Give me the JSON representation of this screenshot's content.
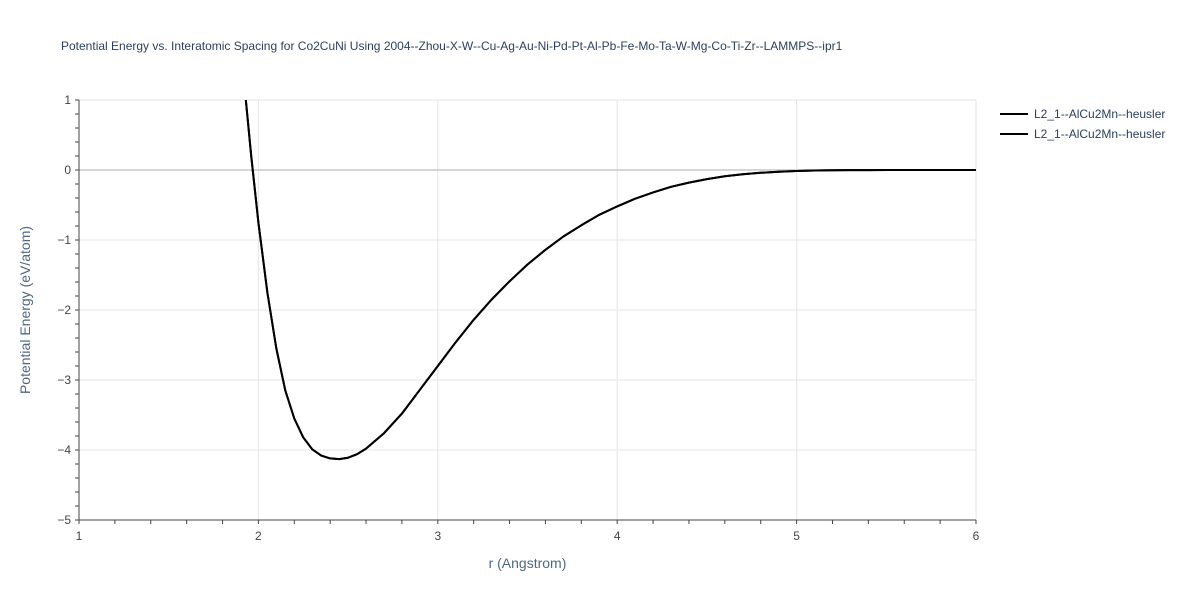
{
  "chart_data": {
    "type": "line",
    "title": "Potential Energy vs. Interatomic Spacing for Co2CuNi Using 2004--Zhou-X-W--Cu-Ag-Au-Ni-Pd-Pt-Al-Pb-Fe-Mo-Ta-W-Mg-Co-Ti-Zr--LAMMPS--ipr1",
    "xlabel": "r (Angstrom)",
    "ylabel": "Potential Energy (eV/atom)",
    "xlim": [
      1,
      6
    ],
    "ylim": [
      -5,
      1
    ],
    "xticks": [
      1,
      2,
      3,
      4,
      5,
      6
    ],
    "yticks": [
      1,
      0,
      -1,
      -2,
      -3,
      -4,
      -5
    ],
    "xtick_labels": [
      "1",
      "2",
      "3",
      "4",
      "5",
      "6"
    ],
    "ytick_labels": [
      "1",
      "0",
      "−1",
      "−2",
      "−3",
      "−4",
      "−5"
    ],
    "grid": true,
    "legend_position": "top-right",
    "colors": {
      "line": "#000000",
      "grid": "#e5e5e5",
      "zero_line": "#c8c8c8",
      "axis": "#444444"
    },
    "series": [
      {
        "name": "L2_1--AlCu2Mn--heusler",
        "x": [
          1.93,
          1.96,
          2.0,
          2.05,
          2.1,
          2.15,
          2.2,
          2.25,
          2.3,
          2.35,
          2.4,
          2.45,
          2.5,
          2.55,
          2.6,
          2.7,
          2.8,
          2.9,
          3.0,
          3.1,
          3.2,
          3.3,
          3.4,
          3.5,
          3.6,
          3.7,
          3.8,
          3.9,
          4.0,
          4.1,
          4.2,
          4.3,
          4.4,
          4.5,
          4.6,
          4.7,
          4.8,
          4.9,
          5.0,
          5.1,
          5.2,
          5.3,
          5.4,
          5.5,
          5.6,
          5.8,
          6.0
        ],
        "y": [
          1.0,
          0.2,
          -0.75,
          -1.75,
          -2.55,
          -3.15,
          -3.55,
          -3.82,
          -3.99,
          -4.08,
          -4.12,
          -4.13,
          -4.11,
          -4.06,
          -3.98,
          -3.76,
          -3.48,
          -3.14,
          -2.8,
          -2.46,
          -2.14,
          -1.85,
          -1.59,
          -1.35,
          -1.14,
          -0.95,
          -0.79,
          -0.64,
          -0.52,
          -0.41,
          -0.32,
          -0.24,
          -0.18,
          -0.13,
          -0.09,
          -0.06,
          -0.04,
          -0.025,
          -0.015,
          -0.008,
          -0.004,
          -0.002,
          -0.001,
          0.0,
          0.0,
          0.0,
          0.0
        ]
      },
      {
        "name": "L2_1--AlCu2Mn--heusler",
        "x": [
          1.93,
          1.96,
          2.0,
          2.05,
          2.1,
          2.15,
          2.2,
          2.25,
          2.3,
          2.35,
          2.4,
          2.45,
          2.5,
          2.55,
          2.6,
          2.7,
          2.8,
          2.9,
          3.0,
          3.1,
          3.2,
          3.3,
          3.4,
          3.5,
          3.6,
          3.7,
          3.8,
          3.9,
          4.0,
          4.1,
          4.2,
          4.3,
          4.4,
          4.5,
          4.6,
          4.7,
          4.8,
          4.9,
          5.0,
          5.1,
          5.2,
          5.3,
          5.4,
          5.5,
          5.6,
          5.8,
          6.0
        ],
        "y": [
          1.0,
          0.2,
          -0.75,
          -1.75,
          -2.55,
          -3.15,
          -3.55,
          -3.82,
          -3.99,
          -4.08,
          -4.12,
          -4.13,
          -4.11,
          -4.06,
          -3.98,
          -3.76,
          -3.48,
          -3.14,
          -2.8,
          -2.46,
          -2.14,
          -1.85,
          -1.59,
          -1.35,
          -1.14,
          -0.95,
          -0.79,
          -0.64,
          -0.52,
          -0.41,
          -0.32,
          -0.24,
          -0.18,
          -0.13,
          -0.09,
          -0.06,
          -0.04,
          -0.025,
          -0.015,
          -0.008,
          -0.004,
          -0.002,
          -0.001,
          0.0,
          0.0,
          0.0,
          0.0
        ]
      }
    ]
  }
}
